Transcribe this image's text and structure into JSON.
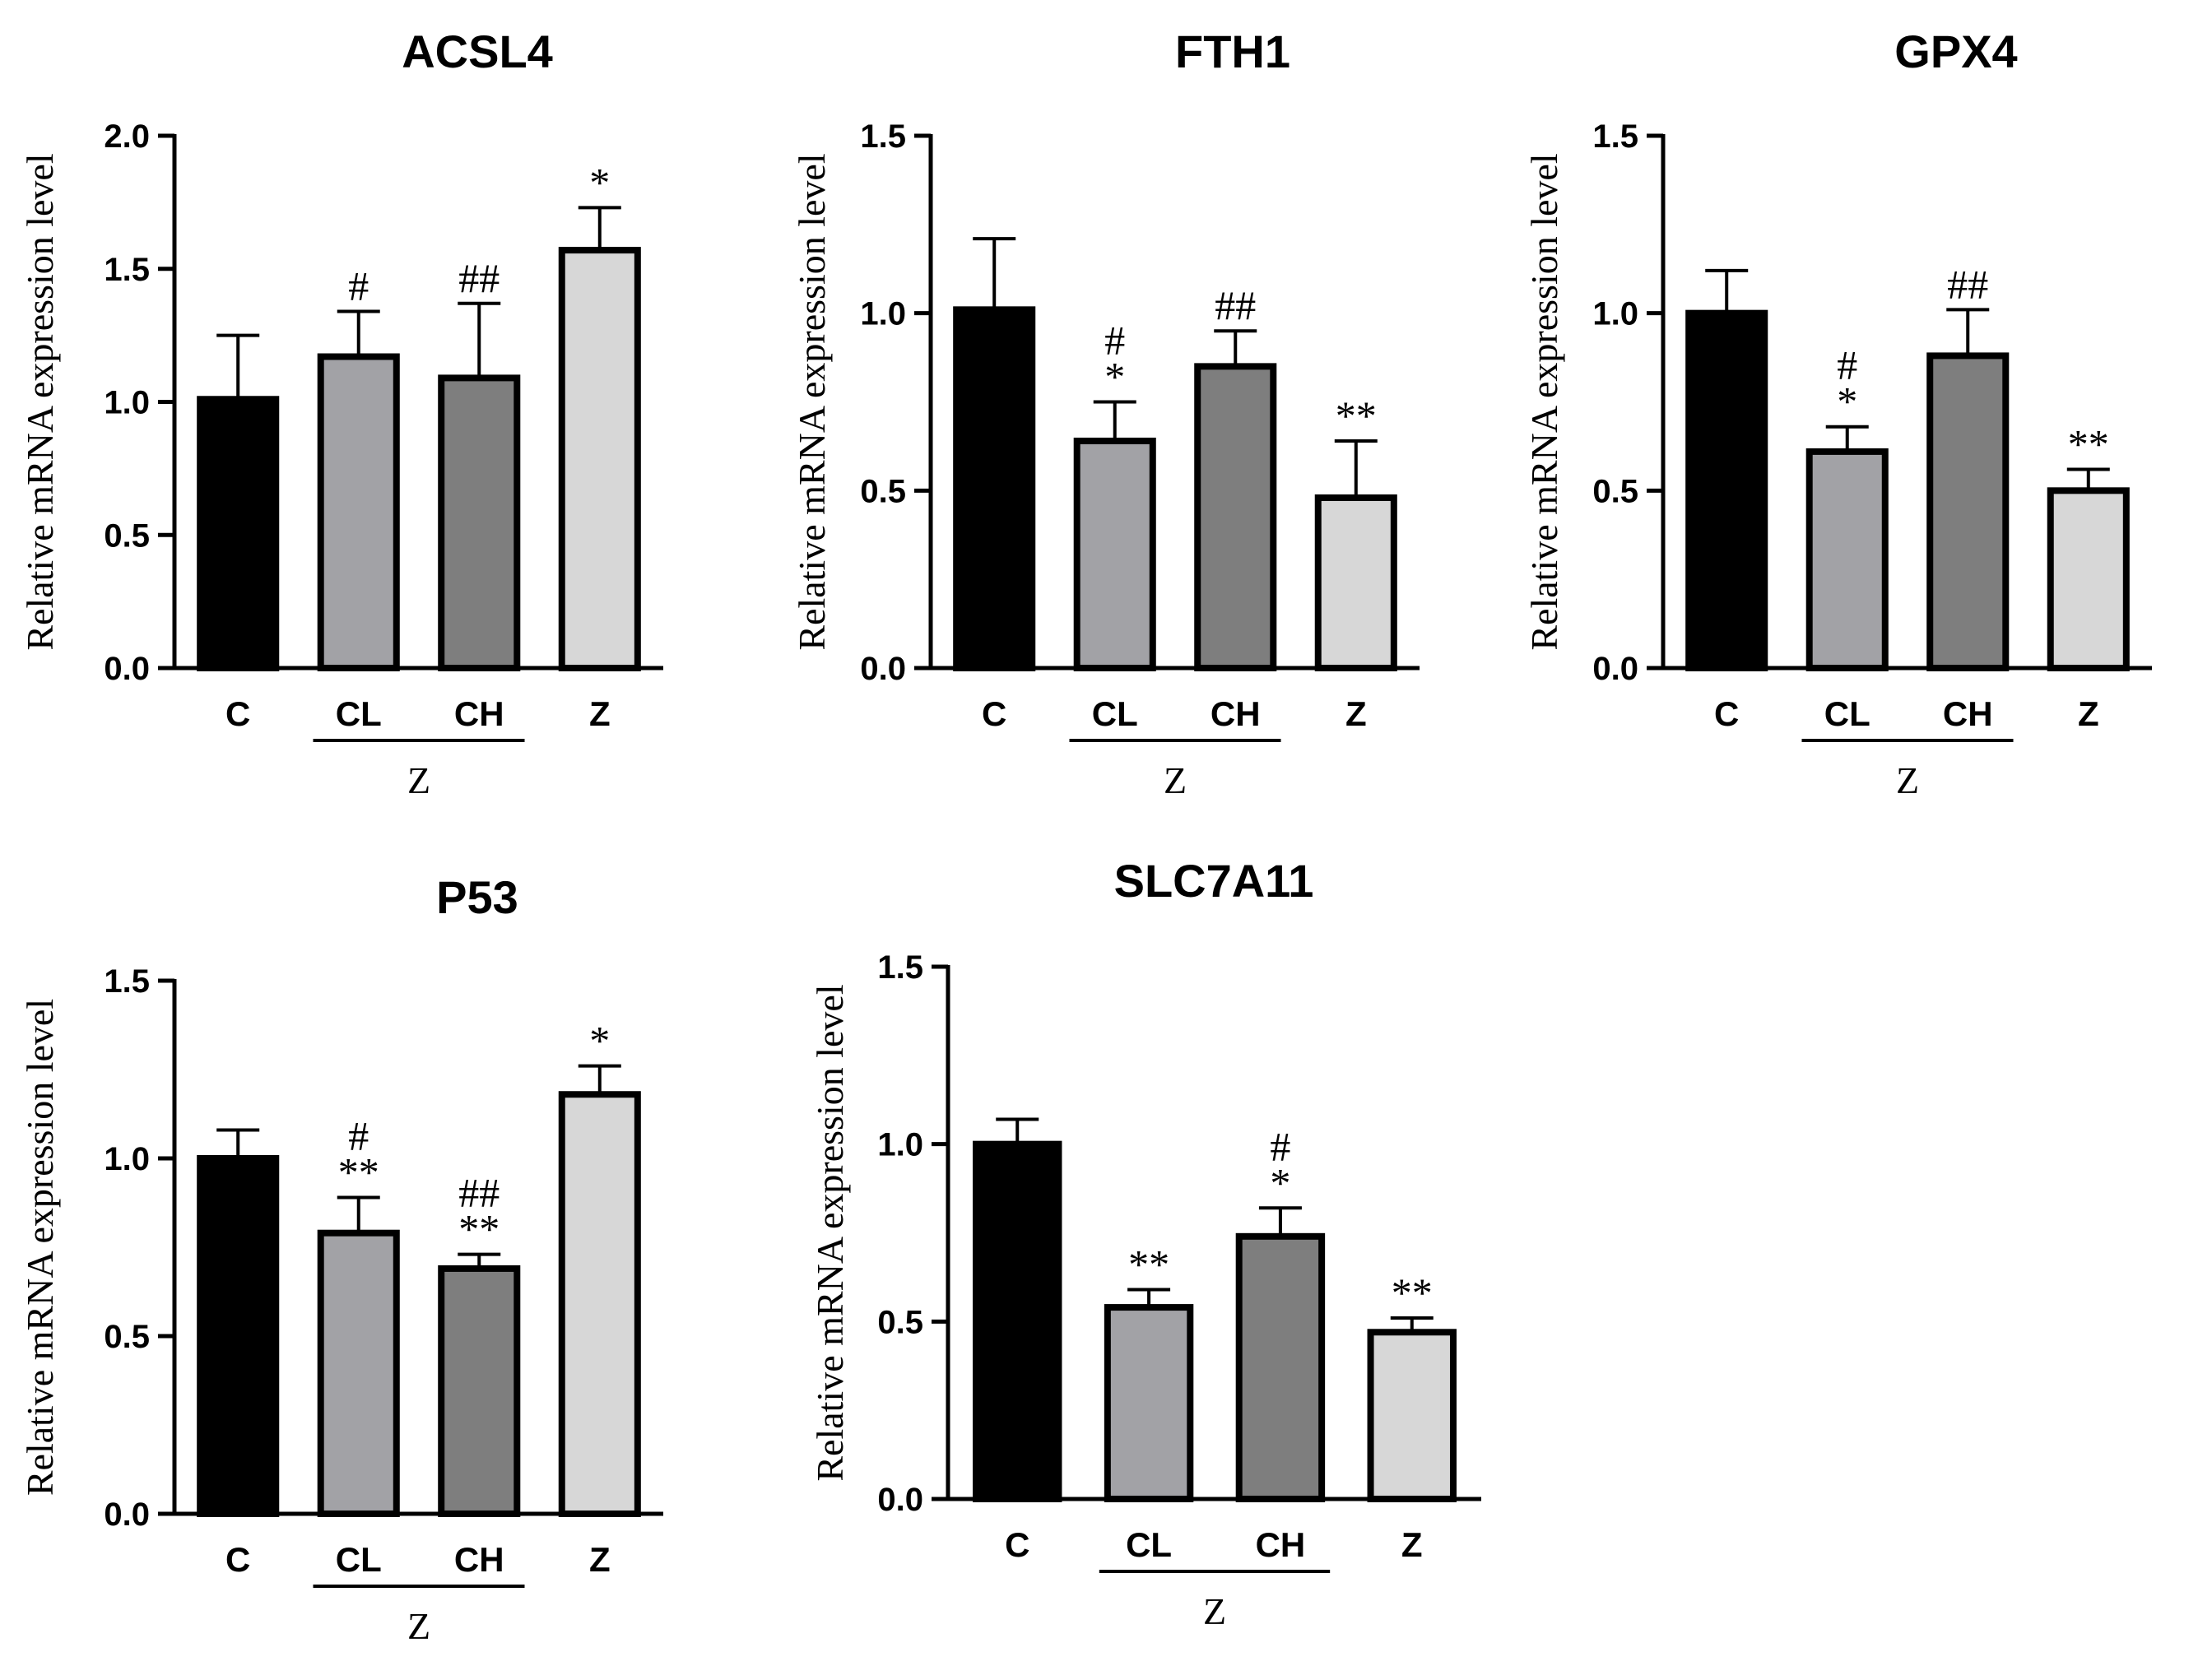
{
  "chart_data": [
    {
      "type": "bar",
      "title": "ACSL4",
      "ylabel": "Relative mRNA expression level",
      "categories": [
        "C",
        "CL",
        "CH",
        "Z"
      ],
      "values": [
        1.01,
        1.17,
        1.09,
        1.57
      ],
      "errors": [
        0.24,
        0.17,
        0.28,
        0.16
      ],
      "annotations": [
        "",
        "#",
        "##",
        "*"
      ],
      "ylim": [
        0,
        2.0
      ],
      "yticks": [
        "0.0",
        "0.5",
        "1.0",
        "1.5",
        "2.0"
      ],
      "group": {
        "label": "Z",
        "members": [
          "CL",
          "CH"
        ]
      },
      "colors": [
        "#000000",
        "#a2a2a6",
        "#7e7e7e",
        "#d7d7d7"
      ]
    },
    {
      "type": "bar",
      "title": "FTH1",
      "ylabel": "Relative mRNA expression level",
      "categories": [
        "C",
        "CL",
        "CH",
        "Z"
      ],
      "values": [
        1.01,
        0.64,
        0.85,
        0.48
      ],
      "errors": [
        0.2,
        0.11,
        0.1,
        0.16
      ],
      "annotations": [
        "",
        "#\n*",
        "##",
        "**"
      ],
      "ylim": [
        0,
        1.5
      ],
      "yticks": [
        "0.0",
        "0.5",
        "1.0",
        "1.5"
      ],
      "group": {
        "label": "Z",
        "members": [
          "CL",
          "CH"
        ]
      },
      "colors": [
        "#000000",
        "#a2a2a6",
        "#7e7e7e",
        "#d7d7d7"
      ]
    },
    {
      "type": "bar",
      "title": "GPX4",
      "ylabel": "Relative mRNA expression level",
      "categories": [
        "C",
        "CL",
        "CH",
        "Z"
      ],
      "values": [
        1.0,
        0.61,
        0.88,
        0.5
      ],
      "errors": [
        0.12,
        0.07,
        0.13,
        0.06
      ],
      "annotations": [
        "",
        "#\n*",
        "##",
        "**"
      ],
      "ylim": [
        0,
        1.5
      ],
      "yticks": [
        "0.0",
        "0.5",
        "1.0",
        "1.5"
      ],
      "group": {
        "label": "Z",
        "members": [
          "CL",
          "CH"
        ]
      },
      "colors": [
        "#000000",
        "#a2a2a6",
        "#7e7e7e",
        "#d7d7d7"
      ]
    },
    {
      "type": "bar",
      "title": "P53",
      "ylabel": "Relative mRNA expression level",
      "categories": [
        "C",
        "CL",
        "CH",
        "Z"
      ],
      "values": [
        1.0,
        0.79,
        0.69,
        1.18
      ],
      "errors": [
        0.08,
        0.1,
        0.04,
        0.08
      ],
      "annotations": [
        "",
        "#\n**",
        "##\n**",
        "*"
      ],
      "ylim": [
        0,
        1.5
      ],
      "yticks": [
        "0.0",
        "0.5",
        "1.0",
        "1.5"
      ],
      "group": {
        "label": "Z",
        "members": [
          "CL",
          "CH"
        ]
      },
      "colors": [
        "#000000",
        "#a2a2a6",
        "#7e7e7e",
        "#d7d7d7"
      ]
    },
    {
      "type": "bar",
      "title": "SLC7A11",
      "ylabel": "Relative mRNA expression level",
      "categories": [
        "C",
        "CL",
        "CH",
        "Z"
      ],
      "values": [
        1.0,
        0.54,
        0.74,
        0.47
      ],
      "errors": [
        0.07,
        0.05,
        0.08,
        0.04
      ],
      "annotations": [
        "",
        "**",
        "#\n*",
        "**"
      ],
      "ylim": [
        0,
        1.5
      ],
      "yticks": [
        "0.0",
        "0.5",
        "1.0",
        "1.5"
      ],
      "group": {
        "label": "Z",
        "members": [
          "CL",
          "CH"
        ]
      },
      "colors": [
        "#000000",
        "#a2a2a6",
        "#7e7e7e",
        "#d7d7d7"
      ]
    }
  ]
}
